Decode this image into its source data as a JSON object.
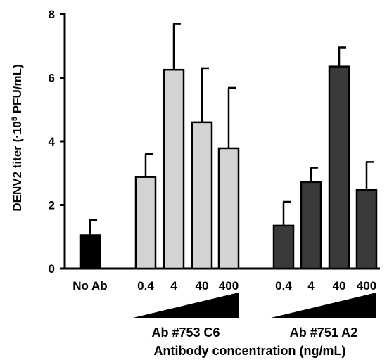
{
  "chart_data": {
    "type": "bar",
    "ylabel": "DENV2 titer (·10⁵ PFU/mL)",
    "ylabel_parts": {
      "prefix": "DENV2 titer (·10",
      "exponent": "5",
      "suffix": " PFU/mL)"
    },
    "xlabel": "Antibody concentration (ng/mL)",
    "ylim": [
      0,
      8
    ],
    "yticks": [
      "0",
      "2",
      "4",
      "6",
      "8"
    ],
    "grid": false,
    "legend": "none",
    "groups": [
      {
        "label": "",
        "color": "#000000",
        "bars": [
          {
            "category": "No Ab",
            "value": 1.05,
            "error": 0.48
          }
        ]
      },
      {
        "label": "Ab #753 C6",
        "color": "#d3d3d3",
        "bars": [
          {
            "category": "0.4",
            "value": 2.88,
            "error": 0.72
          },
          {
            "category": "4",
            "value": 6.25,
            "error": 1.45
          },
          {
            "category": "40",
            "value": 4.6,
            "error": 1.7
          },
          {
            "category": "400",
            "value": 3.78,
            "error": 1.9
          }
        ]
      },
      {
        "label": "Ab #751 A2",
        "color": "#3a3a3a",
        "bars": [
          {
            "category": "0.4",
            "value": 1.35,
            "error": 0.75
          },
          {
            "category": "4",
            "value": 2.72,
            "error": 0.45
          },
          {
            "category": "40",
            "value": 6.35,
            "error": 0.6
          },
          {
            "category": "400",
            "value": 2.47,
            "error": 0.88
          }
        ]
      }
    ]
  }
}
